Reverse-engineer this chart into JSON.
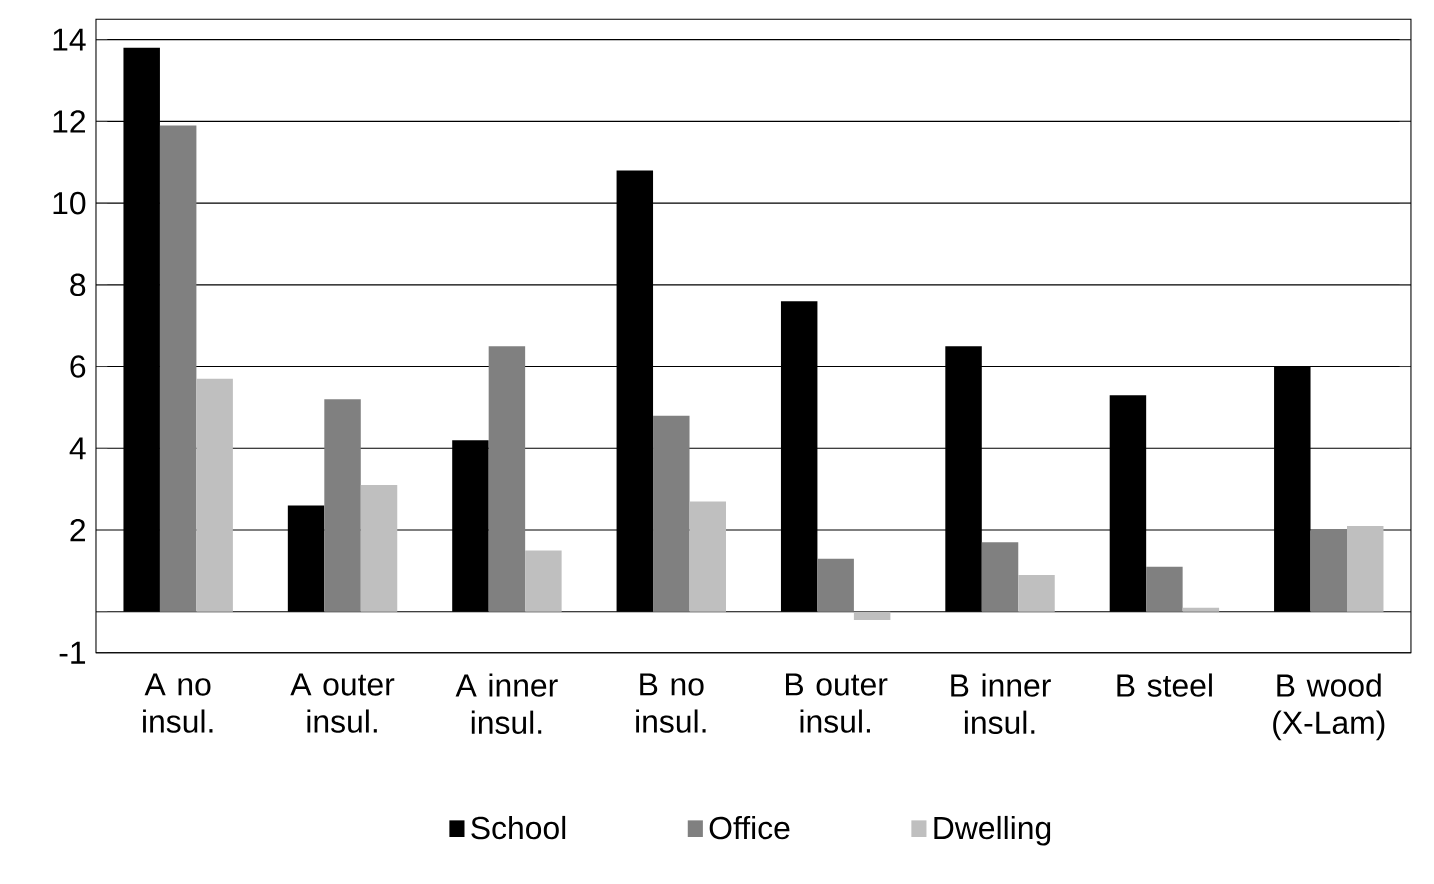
{
  "chart_data": {
    "type": "bar",
    "categories": [
      "A no insul.",
      "A outer insul.",
      "A inner insul.",
      "B no insul.",
      "B outer insul.",
      "B inner insul.",
      "B steel",
      "B wood (X-Lam)"
    ],
    "series": [
      {
        "name": "School",
        "color": "#000000",
        "values": [
          13.8,
          2.6,
          4.2,
          10.8,
          7.6,
          6.5,
          5.3,
          6.0
        ]
      },
      {
        "name": "Office",
        "color": "#808080",
        "values": [
          11.9,
          5.2,
          6.5,
          4.8,
          1.3,
          1.7,
          1.1,
          2.0
        ]
      },
      {
        "name": "Dwelling",
        "color": "#bfbfbf",
        "values": [
          5.7,
          3.1,
          1.5,
          2.7,
          -0.2,
          0.9,
          0.1,
          2.1
        ]
      }
    ],
    "ylim": [
      -1,
      14.5
    ],
    "yticks": [
      -1,
      {
        "value": 0,
        "label": null
      },
      2,
      4,
      6,
      8,
      10,
      12,
      14
    ],
    "grid": "y",
    "legend": "bottom"
  }
}
